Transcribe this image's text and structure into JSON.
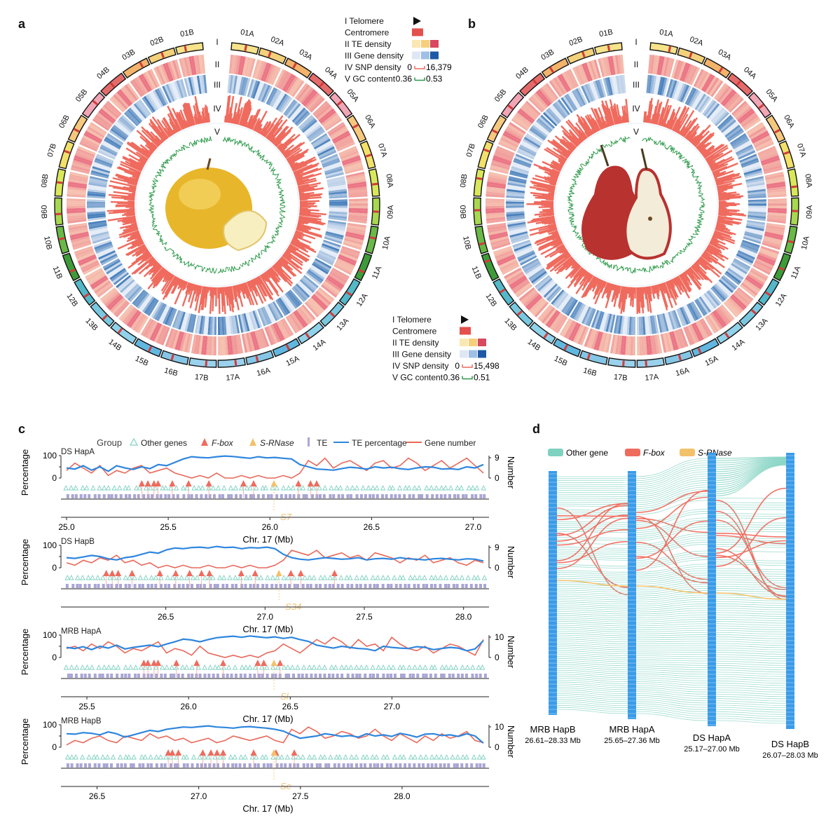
{
  "panel_labels": [
    "a",
    "b",
    "c",
    "d"
  ],
  "chart_data": [
    {
      "type": "circos",
      "panel": "a",
      "chromosomes": [
        "01A",
        "02A",
        "03A",
        "04A",
        "05A",
        "06A",
        "07A",
        "08A",
        "09A",
        "10A",
        "11A",
        "12A",
        "13A",
        "14A",
        "15A",
        "16A",
        "17A",
        "17B",
        "16B",
        "15B",
        "14B",
        "13B",
        "12B",
        "11B",
        "10B",
        "09B",
        "08B",
        "07B",
        "06B",
        "05B",
        "04B",
        "03B",
        "02B",
        "01B"
      ],
      "track_numerals": [
        "I",
        "II",
        "III",
        "IV",
        "V"
      ],
      "legend": {
        "items": [
          "I Telomere",
          "Centromere",
          "II TE density",
          "III Gene density",
          "IV SNP density",
          "V GC content"
        ],
        "snp_range": [
          "0",
          "16,379"
        ],
        "gc_range": [
          "0.36",
          "0.53"
        ]
      }
    },
    {
      "type": "circos",
      "panel": "b",
      "chromosomes": [
        "01A",
        "02A",
        "03A",
        "04A",
        "05A",
        "06A",
        "07A",
        "08A",
        "09A",
        "10A",
        "11A",
        "12A",
        "13A",
        "14A",
        "15A",
        "16A",
        "17A",
        "17B",
        "16B",
        "15B",
        "14B",
        "13B",
        "12B",
        "11B",
        "10B",
        "09B",
        "08B",
        "07B",
        "06B",
        "05B",
        "04B",
        "03B",
        "02B",
        "01B"
      ],
      "track_numerals": [
        "I",
        "II",
        "III",
        "IV",
        "V"
      ],
      "legend": {
        "items": [
          "I Telomere",
          "Centromere",
          "II TE density",
          "III Gene density",
          "IV SNP density",
          "V GC content"
        ],
        "snp_range": [
          "0",
          "15,498"
        ],
        "gc_range": [
          "0.36",
          "0.51"
        ]
      }
    },
    {
      "type": "line",
      "panel": "c",
      "legend": {
        "title": "Group",
        "items": [
          "Other genes",
          "F-box",
          "S-RNase",
          "TE",
          "TE percentage",
          "Gene number"
        ]
      },
      "ylabel_left": "Percentage",
      "ylabel_right": "Number",
      "xlabel": "Chr. 17 (Mb)",
      "subplots": [
        {
          "name": "DS HapA",
          "xlim": [
            25.0,
            27.05
          ],
          "xticks": [
            "25.0",
            "25.5",
            "26.0",
            "26.5",
            "27.0"
          ],
          "yleft_ticks": [
            "100",
            "50",
            "0"
          ],
          "yright_ticks": [
            "9",
            "0"
          ],
          "yright_max": 9,
          "allele": "S7",
          "allele_pos": 26.02,
          "te_percentage": [
            45,
            40,
            55,
            35,
            50,
            30,
            55,
            45,
            38,
            50,
            42,
            60,
            55,
            70,
            85,
            95,
            92,
            90,
            95,
            98,
            96,
            92,
            88,
            95,
            90,
            92,
            88,
            85,
            60,
            50,
            40,
            38,
            35,
            42,
            48,
            45,
            40,
            50,
            45,
            48,
            42,
            38,
            45,
            50,
            48,
            40,
            42,
            38,
            50,
            45,
            60
          ],
          "gene_number": [
            3,
            6,
            4,
            2,
            5,
            1,
            3,
            2,
            4,
            5,
            2,
            3,
            4,
            2,
            1,
            0,
            1,
            0,
            2,
            0,
            0,
            1,
            0,
            1,
            0,
            0,
            1,
            0,
            2,
            7,
            5,
            8,
            4,
            6,
            7,
            5,
            3,
            6,
            7,
            4,
            5,
            8,
            6,
            3,
            5,
            7,
            4,
            6,
            8,
            5,
            2
          ],
          "fbox_pos": [
            25.37,
            25.4,
            25.43,
            25.45,
            25.52,
            25.6,
            25.7,
            25.87,
            25.92,
            26.14,
            26.2,
            26.23
          ]
        },
        {
          "name": "DS HapB",
          "xlim": [
            26.0,
            28.1
          ],
          "xticks": [
            "26.5",
            "27.0",
            "27.5",
            "28.0"
          ],
          "yleft_ticks": [
            "100",
            "50",
            "0"
          ],
          "yright_ticks": [
            "9",
            "0"
          ],
          "yright_max": 9,
          "allele": "S34",
          "allele_pos": 27.07,
          "te_percentage": [
            45,
            42,
            48,
            55,
            50,
            40,
            35,
            45,
            50,
            60,
            70,
            65,
            80,
            88,
            85,
            90,
            92,
            88,
            95,
            90,
            92,
            85,
            90,
            88,
            92,
            85,
            60,
            45,
            38,
            35,
            40,
            45,
            42,
            38,
            40,
            45,
            35,
            40,
            42,
            38,
            45,
            40,
            38,
            35,
            40,
            42,
            38,
            35,
            40,
            38,
            30
          ],
          "gene_number": [
            2,
            1,
            3,
            2,
            4,
            3,
            5,
            2,
            3,
            1,
            2,
            0,
            1,
            0,
            1,
            0,
            0,
            1,
            0,
            0,
            1,
            0,
            1,
            0,
            0,
            1,
            3,
            7,
            6,
            5,
            7,
            4,
            5,
            6,
            4,
            5,
            3,
            6,
            5,
            4,
            2,
            4,
            3,
            5,
            2,
            3,
            4,
            2,
            1,
            3,
            2
          ],
          "fbox_pos": [
            26.2,
            26.23,
            26.26,
            26.33,
            26.47,
            26.55,
            26.62,
            26.68,
            26.72,
            26.88,
            26.95,
            27.13,
            27.18,
            27.35
          ]
        },
        {
          "name": "MRB HapA",
          "xlim": [
            25.4,
            27.45
          ],
          "xticks": [
            "25.5",
            "26.0",
            "26.5",
            "27.0"
          ],
          "yleft_ticks": [
            "100",
            "50",
            "0"
          ],
          "yright_ticks": [
            "10",
            "0"
          ],
          "yright_max": 10,
          "allele": "Sl",
          "allele_pos": 26.42,
          "te_percentage": [
            45,
            40,
            48,
            35,
            50,
            42,
            55,
            38,
            45,
            50,
            55,
            48,
            60,
            70,
            82,
            78,
            70,
            80,
            88,
            92,
            95,
            90,
            96,
            92,
            88,
            92,
            85,
            90,
            80,
            72,
            55,
            48,
            42,
            50,
            45,
            40,
            38,
            30,
            50,
            45,
            42,
            40,
            48,
            45,
            35,
            40,
            45,
            42,
            30,
            38,
            75
          ],
          "gene_number": [
            4,
            5,
            3,
            6,
            4,
            7,
            5,
            2,
            4,
            3,
            5,
            7,
            2,
            4,
            3,
            1,
            5,
            2,
            1,
            0,
            1,
            0,
            1,
            0,
            2,
            3,
            6,
            4,
            2,
            5,
            8,
            6,
            9,
            7,
            4,
            8,
            5,
            6,
            3,
            9,
            6,
            4,
            3,
            5,
            2,
            4,
            6,
            5,
            3,
            1,
            8
          ],
          "fbox_pos": [
            25.78,
            25.8,
            25.83,
            25.85,
            25.94,
            26.04,
            26.17,
            26.34,
            26.37,
            26.45
          ]
        },
        {
          "name": "MRB HapB",
          "xlim": [
            26.35,
            28.4
          ],
          "xticks": [
            "26.5",
            "27.0",
            "27.5",
            "28.0"
          ],
          "yleft_ticks": [
            "100",
            "50",
            "0"
          ],
          "yright_ticks": [
            "10",
            "0"
          ],
          "yright_max": 10,
          "allele": "Se",
          "allele_pos": 27.37,
          "te_percentage": [
            60,
            58,
            65,
            62,
            55,
            68,
            60,
            45,
            55,
            65,
            75,
            70,
            80,
            85,
            90,
            88,
            92,
            95,
            90,
            88,
            85,
            90,
            92,
            88,
            85,
            80,
            72,
            55,
            40,
            45,
            50,
            60,
            55,
            48,
            52,
            45,
            60,
            50,
            55,
            48,
            62,
            55,
            45,
            58,
            60,
            52,
            55,
            48,
            60,
            50,
            18
          ],
          "gene_number": [
            1,
            3,
            2,
            4,
            5,
            3,
            2,
            5,
            4,
            3,
            6,
            4,
            5,
            3,
            4,
            2,
            3,
            4,
            2,
            3,
            5,
            4,
            3,
            4,
            5,
            3,
            2,
            8,
            6,
            9,
            7,
            4,
            5,
            7,
            6,
            4,
            5,
            8,
            5,
            3,
            6,
            4,
            2,
            5,
            3,
            6,
            4,
            5,
            7,
            3,
            2
          ],
          "fbox_pos": [
            26.85,
            26.87,
            26.9,
            27.02,
            27.06,
            27.09,
            27.12,
            27.27,
            27.38,
            27.47
          ]
        }
      ]
    },
    {
      "type": "alluvial",
      "panel": "d",
      "legend": [
        "Other gene",
        "F-box",
        "S-RNase"
      ],
      "columns": [
        {
          "name": "MRB HapB",
          "range": "26.61–28.33 Mb"
        },
        {
          "name": "MRB HapA",
          "range": "25.65–27.36 Mb"
        },
        {
          "name": "DS HapA",
          "range": "25.17–27.00 Mb"
        },
        {
          "name": "DS HapB",
          "range": "26.07–28.03 Mb"
        }
      ]
    }
  ],
  "colors": {
    "te": "#2e86de",
    "gene": "#e8685a",
    "other_gene": "#7fd1c0",
    "fbox": "#ef6b5e",
    "srnase": "#f3c16a",
    "te_marker": "#a9a6d6",
    "snp": "#ef6b5e",
    "gc": "#2c9a4a",
    "te_density": "#f7b08f",
    "gene_density": "#3d7fc1"
  }
}
